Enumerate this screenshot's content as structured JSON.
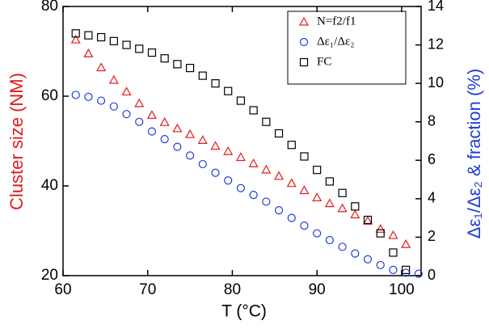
{
  "chart_data": {
    "type": "scatter",
    "xlabel": "T (°C)",
    "ylabel": "Cluster size (NM)",
    "y2label": "Δε₁/Δε₂ & fraction (%)",
    "xlim": [
      60,
      102.3
    ],
    "xticks": [
      60,
      70,
      80,
      90,
      100
    ],
    "ylim": [
      20,
      80
    ],
    "yticks": [
      20,
      40,
      60,
      80
    ],
    "y2lim": [
      0,
      14
    ],
    "y2ticks": [
      0,
      2,
      4,
      6,
      8,
      10,
      12,
      14
    ],
    "legend": "upper right",
    "series": [
      {
        "name": "N=f2/f1",
        "color": "#e41a1c",
        "marker": "triangle",
        "axis": "y",
        "x": [
          61.5,
          63,
          64.5,
          66,
          67.5,
          69,
          70.5,
          72,
          73.5,
          75,
          76.5,
          78,
          79.5,
          81,
          82.5,
          84,
          85.5,
          87,
          88.5,
          90,
          91.5,
          93,
          94.5,
          96,
          97.5,
          99,
          100.5
        ],
        "values": [
          72.6,
          69.5,
          66.4,
          63.6,
          61,
          58.4,
          55.8,
          54.2,
          52.8,
          51.5,
          50.2,
          48.9,
          47.7,
          46.4,
          45,
          43.6,
          42.2,
          40.6,
          39,
          37.4,
          36.1,
          35,
          33.6,
          32.2,
          30.4,
          29,
          27
        ]
      },
      {
        "name": "Δε₁/Δε₂",
        "color": "#1f3fd6",
        "marker": "circle",
        "axis": "y2",
        "x": [
          61.5,
          63,
          64.5,
          66,
          67.5,
          69,
          70.5,
          72,
          73.5,
          75,
          76.5,
          78,
          79.5,
          81,
          82.5,
          84,
          85.5,
          87,
          88.5,
          90,
          91.5,
          93,
          94.5,
          96,
          97.5,
          99,
          100.5,
          102
        ],
        "values": [
          9.4,
          9.3,
          9.1,
          8.8,
          8.4,
          8.0,
          7.5,
          7.1,
          6.7,
          6.25,
          5.8,
          5.35,
          4.95,
          4.55,
          4.2,
          3.85,
          3.4,
          3.0,
          2.6,
          2.2,
          1.85,
          1.5,
          1.15,
          0.85,
          0.55,
          0.3,
          0.15,
          0.1
        ]
      },
      {
        "name": "FC",
        "color": "#000000",
        "marker": "square",
        "axis": "y2",
        "x": [
          61.5,
          63,
          64.5,
          66,
          67.5,
          69,
          70.5,
          72,
          73.5,
          75,
          76.5,
          78,
          79.5,
          81,
          82.5,
          84,
          85.5,
          87,
          88.5,
          90,
          91.5,
          93,
          94.5,
          96,
          97.5,
          99,
          100.5
        ],
        "values": [
          12.6,
          12.5,
          12.4,
          12.2,
          12.0,
          11.8,
          11.6,
          11.3,
          11.0,
          10.8,
          10.4,
          10.0,
          9.6,
          9.1,
          8.6,
          8.0,
          7.4,
          6.8,
          6.2,
          5.5,
          4.9,
          4.3,
          3.6,
          2.9,
          2.2,
          1.2,
          0.3
        ]
      }
    ]
  }
}
